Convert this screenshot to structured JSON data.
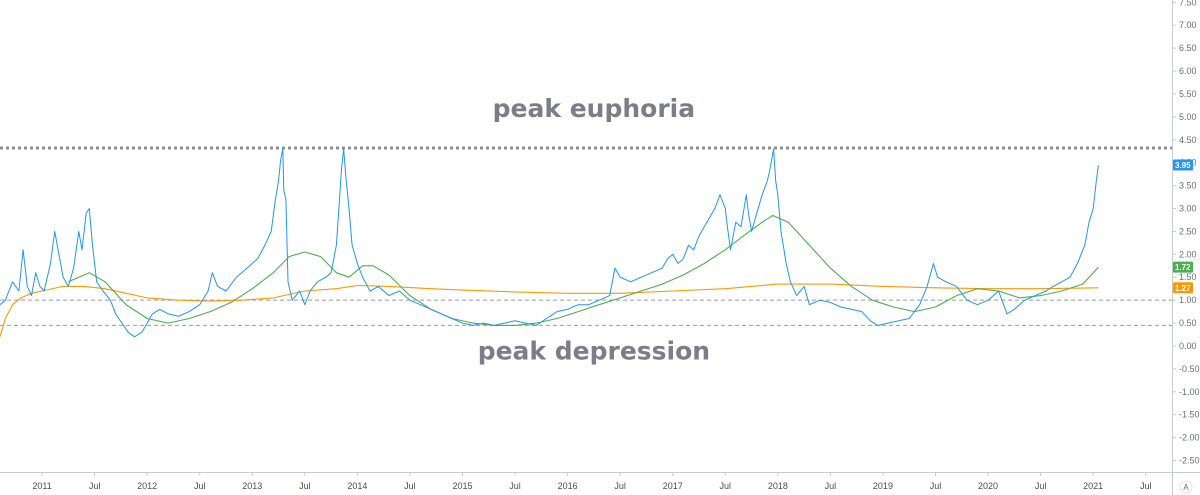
{
  "chart_data": {
    "type": "line",
    "title": "",
    "xlabel": "",
    "ylabel": "",
    "x_range": [
      2010.6,
      2021.75
    ],
    "ylim": [
      -2.75,
      7.55
    ],
    "y_ticks": [
      "7.50",
      "7.00",
      "6.50",
      "6.00",
      "5.50",
      "5.00",
      "4.50",
      "4.00",
      "3.50",
      "3.00",
      "2.50",
      "2.00",
      "1.50",
      "1.00",
      "0.50",
      "0.00",
      "-0.50",
      "-1.00",
      "-1.50",
      "-2.00",
      "-2.50"
    ],
    "y_tick_values": [
      7.5,
      7.0,
      6.5,
      6.0,
      5.5,
      5.0,
      4.5,
      4.0,
      3.5,
      3.0,
      2.5,
      2.0,
      1.5,
      1.0,
      0.5,
      0.0,
      -0.5,
      -1.0,
      -1.5,
      -2.0,
      -2.5
    ],
    "x_ticks": [
      {
        "label": "2011",
        "x": 2011.0
      },
      {
        "label": "Jul",
        "x": 2011.5
      },
      {
        "label": "2012",
        "x": 2012.0
      },
      {
        "label": "Jul",
        "x": 2012.5
      },
      {
        "label": "2013",
        "x": 2013.0
      },
      {
        "label": "Jul",
        "x": 2013.5
      },
      {
        "label": "2014",
        "x": 2014.0
      },
      {
        "label": "Jul",
        "x": 2014.5
      },
      {
        "label": "2015",
        "x": 2015.0
      },
      {
        "label": "Jul",
        "x": 2015.5
      },
      {
        "label": "2016",
        "x": 2016.0
      },
      {
        "label": "Jul",
        "x": 2016.5
      },
      {
        "label": "2017",
        "x": 2017.0
      },
      {
        "label": "Jul",
        "x": 2017.5
      },
      {
        "label": "2018",
        "x": 2018.0
      },
      {
        "label": "Jul",
        "x": 2018.5
      },
      {
        "label": "2019",
        "x": 2019.0
      },
      {
        "label": "Jul",
        "x": 2019.5
      },
      {
        "label": "2020",
        "x": 2020.0
      },
      {
        "label": "Jul",
        "x": 2020.5
      },
      {
        "label": "2021",
        "x": 2021.0
      },
      {
        "label": "Jul",
        "x": 2021.5
      }
    ],
    "series": [
      {
        "color": "#2196f3",
        "points": [
          [
            2010.6,
            0.9
          ],
          [
            2010.65,
            1.0
          ],
          [
            2010.72,
            1.4
          ],
          [
            2010.78,
            1.2
          ],
          [
            2010.82,
            2.1
          ],
          [
            2010.86,
            1.3
          ],
          [
            2010.9,
            1.1
          ],
          [
            2010.94,
            1.6
          ],
          [
            2010.98,
            1.3
          ],
          [
            2011.02,
            1.2
          ],
          [
            2011.08,
            1.8
          ],
          [
            2011.12,
            2.5
          ],
          [
            2011.16,
            2.0
          ],
          [
            2011.2,
            1.5
          ],
          [
            2011.25,
            1.3
          ],
          [
            2011.3,
            1.7
          ],
          [
            2011.35,
            2.5
          ],
          [
            2011.38,
            2.1
          ],
          [
            2011.42,
            2.9
          ],
          [
            2011.45,
            3.0
          ],
          [
            2011.48,
            2.2
          ],
          [
            2011.52,
            1.4
          ],
          [
            2011.58,
            1.2
          ],
          [
            2011.65,
            1.0
          ],
          [
            2011.7,
            0.7
          ],
          [
            2011.76,
            0.5
          ],
          [
            2011.82,
            0.3
          ],
          [
            2011.88,
            0.2
          ],
          [
            2011.95,
            0.3
          ],
          [
            2012.0,
            0.5
          ],
          [
            2012.05,
            0.7
          ],
          [
            2012.12,
            0.8
          ],
          [
            2012.2,
            0.7
          ],
          [
            2012.3,
            0.65
          ],
          [
            2012.4,
            0.75
          ],
          [
            2012.5,
            0.9
          ],
          [
            2012.58,
            1.2
          ],
          [
            2012.62,
            1.6
          ],
          [
            2012.67,
            1.3
          ],
          [
            2012.75,
            1.2
          ],
          [
            2012.85,
            1.5
          ],
          [
            2012.95,
            1.7
          ],
          [
            2013.05,
            1.9
          ],
          [
            2013.12,
            2.2
          ],
          [
            2013.18,
            2.5
          ],
          [
            2013.22,
            3.2
          ],
          [
            2013.25,
            3.6
          ],
          [
            2013.27,
            4.05
          ],
          [
            2013.29,
            4.3
          ],
          [
            2013.3,
            3.4
          ],
          [
            2013.32,
            3.2
          ],
          [
            2013.34,
            1.4
          ],
          [
            2013.38,
            1.0
          ],
          [
            2013.45,
            1.2
          ],
          [
            2013.5,
            0.9
          ],
          [
            2013.55,
            1.2
          ],
          [
            2013.62,
            1.4
          ],
          [
            2013.7,
            1.5
          ],
          [
            2013.75,
            1.6
          ],
          [
            2013.8,
            2.2
          ],
          [
            2013.83,
            3.2
          ],
          [
            2013.85,
            3.9
          ],
          [
            2013.87,
            4.3
          ],
          [
            2013.89,
            3.7
          ],
          [
            2013.92,
            3.0
          ],
          [
            2013.95,
            2.2
          ],
          [
            2014.0,
            1.8
          ],
          [
            2014.05,
            1.5
          ],
          [
            2014.12,
            1.2
          ],
          [
            2014.2,
            1.3
          ],
          [
            2014.3,
            1.1
          ],
          [
            2014.4,
            1.2
          ],
          [
            2014.5,
            1.0
          ],
          [
            2014.6,
            0.9
          ],
          [
            2014.7,
            0.8
          ],
          [
            2014.8,
            0.7
          ],
          [
            2014.9,
            0.6
          ],
          [
            2015.0,
            0.5
          ],
          [
            2015.1,
            0.45
          ],
          [
            2015.2,
            0.5
          ],
          [
            2015.3,
            0.45
          ],
          [
            2015.4,
            0.5
          ],
          [
            2015.5,
            0.55
          ],
          [
            2015.6,
            0.5
          ],
          [
            2015.7,
            0.45
          ],
          [
            2015.8,
            0.6
          ],
          [
            2015.9,
            0.75
          ],
          [
            2016.0,
            0.8
          ],
          [
            2016.1,
            0.9
          ],
          [
            2016.2,
            0.9
          ],
          [
            2016.3,
            1.0
          ],
          [
            2016.4,
            1.1
          ],
          [
            2016.45,
            1.7
          ],
          [
            2016.5,
            1.5
          ],
          [
            2016.6,
            1.4
          ],
          [
            2016.7,
            1.5
          ],
          [
            2016.8,
            1.6
          ],
          [
            2016.9,
            1.7
          ],
          [
            2016.95,
            1.9
          ],
          [
            2017.0,
            2.0
          ],
          [
            2017.05,
            1.8
          ],
          [
            2017.1,
            1.9
          ],
          [
            2017.15,
            2.2
          ],
          [
            2017.2,
            2.1
          ],
          [
            2017.25,
            2.4
          ],
          [
            2017.3,
            2.6
          ],
          [
            2017.35,
            2.8
          ],
          [
            2017.4,
            3.0
          ],
          [
            2017.45,
            3.3
          ],
          [
            2017.5,
            3.0
          ],
          [
            2017.52,
            2.6
          ],
          [
            2017.55,
            2.1
          ],
          [
            2017.6,
            2.7
          ],
          [
            2017.65,
            2.6
          ],
          [
            2017.7,
            3.3
          ],
          [
            2017.72,
            2.9
          ],
          [
            2017.75,
            2.5
          ],
          [
            2017.8,
            2.9
          ],
          [
            2017.85,
            3.3
          ],
          [
            2017.9,
            3.6
          ],
          [
            2017.92,
            3.8
          ],
          [
            2017.94,
            4.05
          ],
          [
            2017.96,
            4.3
          ],
          [
            2017.98,
            3.6
          ],
          [
            2018.0,
            3.3
          ],
          [
            2018.03,
            2.5
          ],
          [
            2018.08,
            1.8
          ],
          [
            2018.12,
            1.4
          ],
          [
            2018.18,
            1.1
          ],
          [
            2018.25,
            1.3
          ],
          [
            2018.3,
            0.9
          ],
          [
            2018.4,
            1.0
          ],
          [
            2018.5,
            0.95
          ],
          [
            2018.6,
            0.85
          ],
          [
            2018.7,
            0.8
          ],
          [
            2018.8,
            0.75
          ],
          [
            2018.88,
            0.55
          ],
          [
            2018.95,
            0.45
          ],
          [
            2019.05,
            0.5
          ],
          [
            2019.15,
            0.55
          ],
          [
            2019.25,
            0.6
          ],
          [
            2019.35,
            0.9
          ],
          [
            2019.42,
            1.3
          ],
          [
            2019.48,
            1.8
          ],
          [
            2019.52,
            1.5
          ],
          [
            2019.6,
            1.4
          ],
          [
            2019.7,
            1.3
          ],
          [
            2019.8,
            1.0
          ],
          [
            2019.9,
            0.9
          ],
          [
            2020.0,
            1.0
          ],
          [
            2020.1,
            1.2
          ],
          [
            2020.18,
            0.7
          ],
          [
            2020.25,
            0.8
          ],
          [
            2020.35,
            1.0
          ],
          [
            2020.45,
            1.1
          ],
          [
            2020.55,
            1.2
          ],
          [
            2020.62,
            1.3
          ],
          [
            2020.7,
            1.4
          ],
          [
            2020.78,
            1.5
          ],
          [
            2020.85,
            1.8
          ],
          [
            2020.92,
            2.2
          ],
          [
            2020.96,
            2.7
          ],
          [
            2021.0,
            3.0
          ],
          [
            2021.03,
            3.6
          ],
          [
            2021.05,
            3.95
          ]
        ]
      },
      {
        "color": "#4caf50",
        "points": [
          [
            2011.25,
            1.4
          ],
          [
            2011.45,
            1.6
          ],
          [
            2011.6,
            1.4
          ],
          [
            2011.8,
            0.9
          ],
          [
            2012.0,
            0.6
          ],
          [
            2012.2,
            0.5
          ],
          [
            2012.4,
            0.6
          ],
          [
            2012.6,
            0.75
          ],
          [
            2012.8,
            0.95
          ],
          [
            2013.0,
            1.25
          ],
          [
            2013.2,
            1.6
          ],
          [
            2013.35,
            1.95
          ],
          [
            2013.5,
            2.05
          ],
          [
            2013.65,
            1.95
          ],
          [
            2013.8,
            1.6
          ],
          [
            2013.92,
            1.5
          ],
          [
            2014.05,
            1.75
          ],
          [
            2014.15,
            1.75
          ],
          [
            2014.3,
            1.55
          ],
          [
            2014.5,
            1.1
          ],
          [
            2014.7,
            0.8
          ],
          [
            2014.9,
            0.6
          ],
          [
            2015.1,
            0.5
          ],
          [
            2015.3,
            0.45
          ],
          [
            2015.5,
            0.45
          ],
          [
            2015.7,
            0.5
          ],
          [
            2015.9,
            0.6
          ],
          [
            2016.1,
            0.75
          ],
          [
            2016.3,
            0.9
          ],
          [
            2016.5,
            1.05
          ],
          [
            2016.7,
            1.2
          ],
          [
            2016.9,
            1.35
          ],
          [
            2017.1,
            1.55
          ],
          [
            2017.3,
            1.8
          ],
          [
            2017.5,
            2.1
          ],
          [
            2017.7,
            2.45
          ],
          [
            2017.85,
            2.7
          ],
          [
            2017.95,
            2.85
          ],
          [
            2018.1,
            2.7
          ],
          [
            2018.3,
            2.2
          ],
          [
            2018.5,
            1.7
          ],
          [
            2018.7,
            1.3
          ],
          [
            2018.9,
            1.0
          ],
          [
            2019.1,
            0.85
          ],
          [
            2019.3,
            0.75
          ],
          [
            2019.5,
            0.85
          ],
          [
            2019.7,
            1.1
          ],
          [
            2019.9,
            1.25
          ],
          [
            2020.1,
            1.2
          ],
          [
            2020.3,
            1.05
          ],
          [
            2020.5,
            1.1
          ],
          [
            2020.7,
            1.2
          ],
          [
            2020.9,
            1.35
          ],
          [
            2021.05,
            1.72
          ]
        ]
      },
      {
        "color": "#ff9800",
        "points": [
          [
            2010.6,
            0.2
          ],
          [
            2010.65,
            0.6
          ],
          [
            2010.72,
            0.9
          ],
          [
            2010.8,
            1.05
          ],
          [
            2010.9,
            1.15
          ],
          [
            2011.0,
            1.2
          ],
          [
            2011.2,
            1.3
          ],
          [
            2011.4,
            1.3
          ],
          [
            2011.6,
            1.25
          ],
          [
            2011.8,
            1.15
          ],
          [
            2012.0,
            1.05
          ],
          [
            2012.3,
            1.0
          ],
          [
            2012.6,
            0.98
          ],
          [
            2012.9,
            1.0
          ],
          [
            2013.2,
            1.05
          ],
          [
            2013.5,
            1.2
          ],
          [
            2013.8,
            1.25
          ],
          [
            2014.0,
            1.32
          ],
          [
            2014.3,
            1.3
          ],
          [
            2014.7,
            1.25
          ],
          [
            2015.0,
            1.22
          ],
          [
            2015.5,
            1.18
          ],
          [
            2016.0,
            1.15
          ],
          [
            2016.5,
            1.15
          ],
          [
            2017.0,
            1.2
          ],
          [
            2017.5,
            1.25
          ],
          [
            2018.0,
            1.35
          ],
          [
            2018.5,
            1.35
          ],
          [
            2019.0,
            1.3
          ],
          [
            2019.5,
            1.27
          ],
          [
            2020.0,
            1.25
          ],
          [
            2020.5,
            1.25
          ],
          [
            2021.05,
            1.27
          ]
        ]
      }
    ],
    "reference_lines": [
      {
        "y": 4.32,
        "style": "dotted-heavy"
      },
      {
        "y": 1.0,
        "style": "dashed"
      },
      {
        "y": 0.45,
        "style": "dashed"
      }
    ],
    "annotations": [
      {
        "text": "peak euphoria",
        "x": 2016.25,
        "y": 5.0
      },
      {
        "text": "peak depression",
        "x": 2016.25,
        "y": -0.3
      }
    ],
    "value_badges": [
      {
        "text": "3.95",
        "y": 3.95,
        "color": "#2196f3"
      },
      {
        "text": "1.72",
        "y": 1.72,
        "color": "#4caf50"
      },
      {
        "text": "1.27",
        "y": 1.27,
        "color": "#ff9800"
      }
    ],
    "axis_mark": "A"
  }
}
